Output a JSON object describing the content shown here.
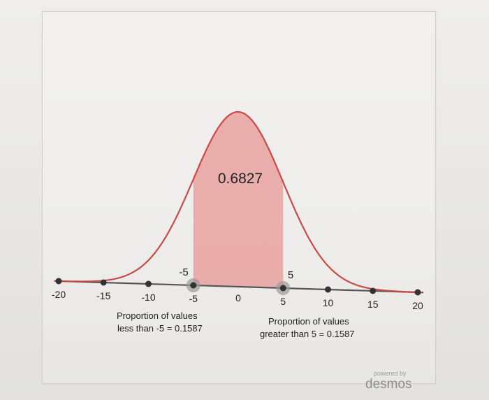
{
  "chart_data": {
    "type": "area",
    "title": "",
    "xlabel": "",
    "ylabel": "",
    "xlim": [
      -20,
      20
    ],
    "x_ticks": [
      -20,
      -15,
      -10,
      -5,
      0,
      5,
      10,
      15,
      20
    ],
    "x_tick_labels": [
      "-20",
      "-15",
      "-10",
      "-5",
      "0",
      "5",
      "10",
      "15",
      "20"
    ],
    "distribution": {
      "mean": 0,
      "sd": 5
    },
    "shaded_interval": [
      -5,
      5
    ],
    "shaded_area_label": "0.6827",
    "boundary_labels": {
      "left": "-5",
      "right": "5"
    },
    "annotations": {
      "left_line1": "Proportion of values",
      "left_line2": "less than -5 = 0.1587",
      "right_line1": "Proportion of values",
      "right_line2": "greater than 5 = 0.1587"
    },
    "colors": {
      "curve": "#c94a47",
      "fill": "#e8a5a4",
      "axis": "#555555",
      "point": "#333333",
      "highlight": "#9a9a9a"
    }
  },
  "branding": {
    "powered_by": "powered by",
    "name": "desmos"
  }
}
